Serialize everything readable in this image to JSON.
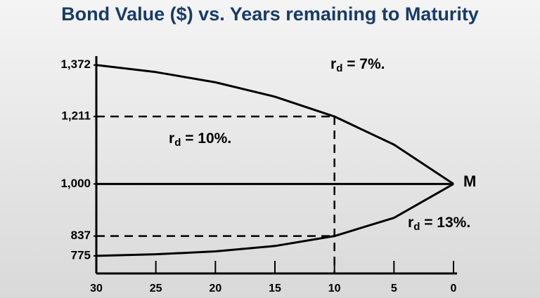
{
  "chart_data": {
    "type": "line",
    "title": "Bond Value ($) vs. Years remaining to Maturity",
    "x": [
      30,
      25,
      20,
      15,
      10,
      5,
      0
    ],
    "xlim": [
      30,
      0
    ],
    "xticks": [
      30,
      25,
      20,
      15,
      10,
      5,
      0
    ],
    "ylim": [
      720,
      1400
    ],
    "yticks": [
      {
        "value": 1372,
        "label": "1,372"
      },
      {
        "value": 1211,
        "label": "1,211"
      },
      {
        "value": 1000,
        "label": "1,000"
      },
      837,
      775
    ],
    "series": [
      {
        "name": "rd = 7%.",
        "color": "#000000",
        "values": [
          1372,
          1350,
          1318,
          1273,
          1211,
          1123,
          1000
        ]
      },
      {
        "name": "rd = 10%.",
        "color": "#000000",
        "values": [
          1000,
          1000,
          1000,
          1000,
          1000,
          1000,
          1000
        ]
      },
      {
        "name": "rd = 13%.",
        "color": "#000000",
        "values": [
          775,
          780,
          789,
          806,
          837,
          894,
          1000
        ]
      }
    ],
    "annotation": "M"
  }
}
